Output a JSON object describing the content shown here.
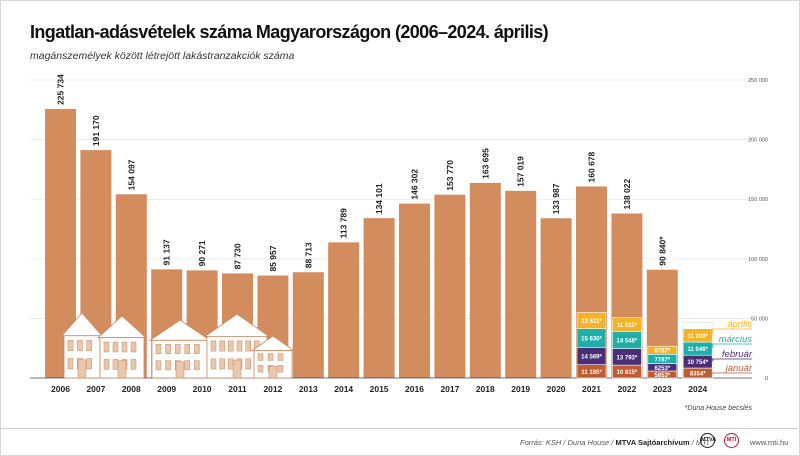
{
  "title": "Ingatlan-adásvételek száma Magyarországon (2006–2024. április)",
  "subtitle": "magánszemélyek között létrejött lakástranzakciók száma",
  "footnote": "*Duna House becslés",
  "source": {
    "prefix": "Forrás: KSH / Duna House / ",
    "archive": "MTVA Sajtóarchívum",
    "suffix": " / MTI",
    "logo1": "MTVA",
    "logo2": "MTI",
    "url": "www.mti.hu"
  },
  "colors": {
    "bar": "#d38c5e",
    "january": "#c05c32",
    "february": "#4a2f76",
    "march": "#1eb0a8",
    "april": "#f2b326",
    "text": "#222222"
  },
  "chart_data": {
    "type": "bar",
    "title": "Ingatlan-adásvételek száma Magyarországon (2006–2024. április)",
    "subtitle": "magánszemélyek között létrejött lakástranzakciók száma",
    "ylim": [
      0,
      250000
    ],
    "y_ticks": [
      0,
      50000,
      100000,
      150000,
      200000,
      250000
    ],
    "y_tick_labels": [
      "0",
      "50 000",
      "100 000",
      "150 000",
      "200 000",
      "250 000"
    ],
    "grid": true,
    "legend_position": "right",
    "categories": [
      "2006",
      "2007",
      "2008",
      "2009",
      "2010",
      "2011",
      "2012",
      "2013",
      "2014",
      "2015",
      "2016",
      "2017",
      "2018",
      "2019",
      "2020",
      "2021",
      "2022",
      "2023",
      "2024"
    ],
    "values": [
      225734,
      191170,
      154097,
      91137,
      90271,
      87730,
      85957,
      88713,
      113789,
      134101,
      146302,
      153770,
      163695,
      157019,
      133987,
      160678,
      138022,
      90840,
      null
    ],
    "value_labels": [
      "225 734",
      "191 170",
      "154 097",
      "91 137",
      "90 271",
      "87 730",
      "85 957",
      "88 713",
      "113 789",
      "134 101",
      "146 302",
      "153 770",
      "163 695",
      "157 019",
      "133 987",
      "160 678",
      "138 022",
      "90 840*",
      ""
    ],
    "monthly": {
      "series_names": [
        "január",
        "február",
        "március",
        "április"
      ],
      "years": [
        {
          "year": "2021",
          "values": [
            11185,
            14569,
            15630,
            13511
          ],
          "labels": [
            "11 185*",
            "14 569*",
            "15 630*",
            "13 511*"
          ]
        },
        {
          "year": "2022",
          "values": [
            10815,
            13793,
            14548,
            11511
          ],
          "labels": [
            "10 815*",
            "13 793*",
            "14 548*",
            "11 511*"
          ]
        },
        {
          "year": "2023",
          "values": [
            5853,
            6253,
            7787,
            6787
          ],
          "labels": [
            "5853*",
            "6253*",
            "7787*",
            "6787*"
          ]
        },
        {
          "year": "2024",
          "values": [
            8354,
            10754,
            11046,
            11200
          ],
          "labels": [
            "8354*",
            "10 754*",
            "11 046*",
            "11 200*"
          ]
        }
      ]
    }
  }
}
